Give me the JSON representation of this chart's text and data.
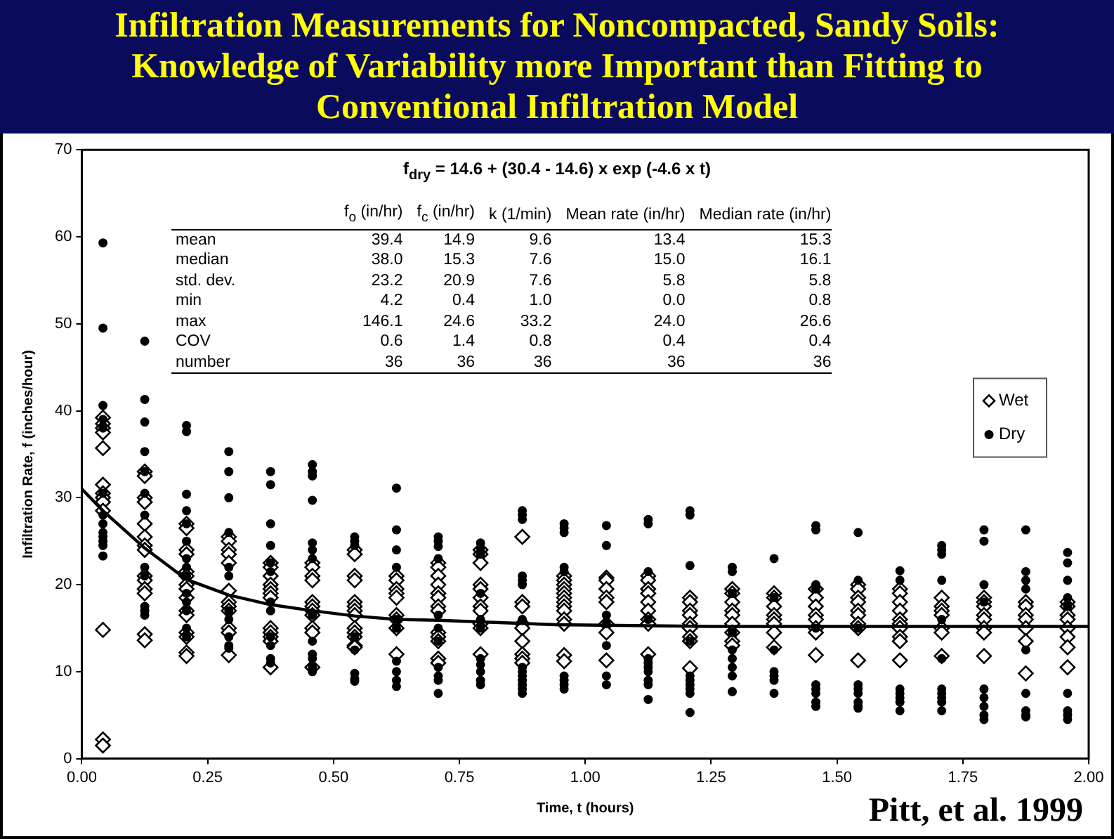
{
  "chart_data": {
    "type": "scatter",
    "title": "Infiltration Measurements for Noncompacted, Sandy Soils: Knowledge of Variability more Important than Fitting to Conventional Infiltration Model",
    "xlabel": "Time, t (hours)",
    "ylabel": "Infiltration Rate, f (inches/hour)",
    "xlim": [
      0,
      2
    ],
    "ylim": [
      0,
      70
    ],
    "xticks": [
      {
        "value": 0,
        "label": "0.00"
      },
      {
        "value": 0.25,
        "label": "0.25"
      },
      {
        "value": 0.5,
        "label": "0.50"
      },
      {
        "value": 0.75,
        "label": "0.75"
      },
      {
        "value": 1,
        "label": "1.00"
      },
      {
        "value": 1.25,
        "label": "1.25"
      },
      {
        "value": 1.5,
        "label": "1.50"
      },
      {
        "value": 1.75,
        "label": "1.75"
      },
      {
        "value": 2,
        "label": "2.00"
      }
    ],
    "yticks": [
      0,
      10,
      20,
      30,
      40,
      50,
      60,
      70
    ],
    "legend": "right",
    "annotations": [
      "f$_{dry}$ = 14.6 + (30.4 - 14.6) x exp (-4.6 x t)",
      "\tf$_{o}$ (in/hr)\tf$_{c}$ (in/hr)\tk (1/min)\tMean rate (in/hr)\tMedian rate (in/hr)",
      "mean\t39.4\t14.9\t9.6\t13.4\t15.3",
      "median\t38.0\t15.3\t7.6\t15.0\t16.1",
      "std. dev.\t23.2\t20.9\t7.6\t5.8\t5.8",
      "min\t4.2\t0.4\t1.0\t0.0\t0.8",
      "max\t146.1\t24.6\t33.2\t24.0\t26.6",
      "COV\t0.6\t1.4\t0.8\t0.4\t0.4",
      "number\t36\t36\t36\t36\t36",
      "Pitt, et al. 1999"
    ],
    "series": [
      {
        "name": "Wet",
        "marker": "diamond",
        "color": "#000000",
        "x": [
          0.042,
          0.042,
          0.042,
          0.042,
          0.042,
          0.042,
          0.042,
          0.042,
          0.042,
          0.042,
          0.042,
          0.042,
          0.042,
          0.125,
          0.125,
          0.125,
          0.125,
          0.125,
          0.125,
          0.125,
          0.125,
          0.125,
          0.125,
          0.125,
          0.125,
          0.125,
          0.125,
          0.208,
          0.208,
          0.208,
          0.208,
          0.208,
          0.208,
          0.208,
          0.208,
          0.208,
          0.208,
          0.208,
          0.208,
          0.208,
          0.208,
          0.208,
          0.292,
          0.292,
          0.292,
          0.292,
          0.292,
          0.292,
          0.292,
          0.292,
          0.292,
          0.292,
          0.292,
          0.292,
          0.375,
          0.375,
          0.375,
          0.375,
          0.375,
          0.375,
          0.375,
          0.375,
          0.375,
          0.375,
          0.375,
          0.375,
          0.458,
          0.458,
          0.458,
          0.458,
          0.458,
          0.458,
          0.458,
          0.458,
          0.458,
          0.458,
          0.458,
          0.542,
          0.542,
          0.542,
          0.542,
          0.542,
          0.542,
          0.542,
          0.542,
          0.542,
          0.542,
          0.542,
          0.542,
          0.542,
          0.625,
          0.625,
          0.625,
          0.625,
          0.625,
          0.625,
          0.625,
          0.625,
          0.625,
          0.708,
          0.708,
          0.708,
          0.708,
          0.708,
          0.708,
          0.708,
          0.708,
          0.708,
          0.708,
          0.708,
          0.708,
          0.708,
          0.792,
          0.792,
          0.792,
          0.792,
          0.792,
          0.792,
          0.792,
          0.792,
          0.792,
          0.792,
          0.792,
          0.875,
          0.875,
          0.875,
          0.875,
          0.875,
          0.875,
          0.875,
          0.875,
          0.875,
          0.958,
          0.958,
          0.958,
          0.958,
          0.958,
          0.958,
          0.958,
          0.958,
          0.958,
          0.958,
          0.958,
          0.958,
          0.958,
          1.042,
          1.042,
          1.042,
          1.042,
          1.042,
          1.042,
          1.042,
          1.042,
          1.125,
          1.125,
          1.125,
          1.125,
          1.125,
          1.125,
          1.125,
          1.125,
          1.125,
          1.208,
          1.208,
          1.208,
          1.208,
          1.208,
          1.208,
          1.208,
          1.208,
          1.208,
          1.292,
          1.292,
          1.292,
          1.292,
          1.292,
          1.292,
          1.292,
          1.292,
          1.292,
          1.375,
          1.375,
          1.375,
          1.375,
          1.375,
          1.375,
          1.375,
          1.375,
          1.458,
          1.458,
          1.458,
          1.458,
          1.458,
          1.458,
          1.458,
          1.458,
          1.542,
          1.542,
          1.542,
          1.542,
          1.542,
          1.542,
          1.542,
          1.542,
          1.542,
          1.625,
          1.625,
          1.625,
          1.625,
          1.625,
          1.625,
          1.625,
          1.625,
          1.625,
          1.625,
          1.708,
          1.708,
          1.708,
          1.708,
          1.708,
          1.708,
          1.708,
          1.792,
          1.792,
          1.792,
          1.792,
          1.792,
          1.792,
          1.792,
          1.792,
          1.875,
          1.875,
          1.875,
          1.875,
          1.875,
          1.875,
          1.875,
          1.958,
          1.958,
          1.958,
          1.958,
          1.958,
          1.958,
          1.958,
          1.958
        ],
        "values": [
          39.2,
          38.5,
          38,
          37.5,
          35.7,
          31.5,
          30.5,
          30,
          29.5,
          28.5,
          14.8,
          2.2,
          1.5,
          33,
          32.5,
          30,
          29.5,
          27,
          25.5,
          24.5,
          24,
          21,
          20.5,
          19.5,
          19,
          14.3,
          13.6,
          27,
          26.5,
          24,
          23.5,
          21.5,
          21,
          20,
          19.5,
          18.5,
          17,
          16.5,
          14.5,
          14,
          12.2,
          11.8,
          25.5,
          25,
          24,
          23.5,
          22.5,
          19.3,
          18,
          17.5,
          17,
          15,
          14.5,
          11.9,
          22.5,
          22,
          21,
          20,
          19.5,
          19,
          18.5,
          15,
          14.5,
          14,
          13.5,
          10.5,
          22.5,
          22,
          21,
          20.5,
          18,
          17.5,
          17,
          16.5,
          15,
          14.5,
          10.5,
          24,
          23.5,
          21,
          20.5,
          18,
          17.5,
          17,
          16.5,
          15,
          14.5,
          14,
          13,
          12.8,
          21,
          20.5,
          19.5,
          19,
          18.5,
          16.5,
          16,
          15,
          12,
          22.5,
          22,
          21,
          20,
          19,
          18.5,
          17.5,
          17,
          14.5,
          14,
          13.5,
          11.5,
          11,
          24,
          23.5,
          22.5,
          20,
          19.5,
          18.5,
          17.5,
          17,
          15.5,
          15,
          12,
          25.5,
          18,
          17.5,
          15.5,
          15,
          13.5,
          12,
          11.5,
          11,
          21,
          20.5,
          20,
          19.5,
          19,
          18.5,
          18,
          17.5,
          17,
          16,
          15.5,
          11.9,
          11.2,
          20.8,
          20.5,
          19.5,
          18.5,
          18,
          15.5,
          14.5,
          11.3,
          21,
          20.5,
          19.5,
          19,
          18,
          17,
          16,
          15.5,
          12,
          18.5,
          18,
          17,
          16.5,
          15.5,
          15,
          14,
          13.5,
          10.4,
          19.5,
          19,
          18,
          17,
          16.5,
          15.5,
          14.5,
          13.5,
          13,
          19,
          18.5,
          17.5,
          16.5,
          16,
          15.5,
          14.5,
          12.8,
          19.5,
          18.5,
          17.5,
          16.5,
          16,
          15,
          14.5,
          11.9,
          20,
          19.5,
          18.5,
          18,
          17,
          16.5,
          15.5,
          15,
          11.3,
          19.5,
          19,
          18,
          17,
          16,
          15.5,
          15,
          14,
          13.5,
          11.3,
          18.5,
          17.5,
          17,
          16.5,
          15,
          14.5,
          11.8,
          18.5,
          18,
          17.5,
          16.5,
          16,
          15,
          14.5,
          11.8,
          18,
          17.5,
          16.5,
          16,
          15,
          13.5,
          9.8,
          18,
          17.5,
          16.5,
          16,
          15,
          14,
          12.8,
          10.5
        ]
      },
      {
        "name": "Dry",
        "marker": "circle",
        "color": "#000000",
        "x": [
          0.042,
          0.042,
          0.042,
          0.042,
          0.042,
          0.042,
          0.042,
          0.042,
          0.042,
          0.042,
          0.042,
          0.042,
          0.042,
          0.125,
          0.125,
          0.125,
          0.125,
          0.125,
          0.125,
          0.125,
          0.125,
          0.125,
          0.125,
          0.125,
          0.125,
          0.208,
          0.208,
          0.208,
          0.208,
          0.208,
          0.208,
          0.208,
          0.208,
          0.208,
          0.208,
          0.208,
          0.208,
          0.208,
          0.208,
          0.292,
          0.292,
          0.292,
          0.292,
          0.292,
          0.292,
          0.292,
          0.292,
          0.292,
          0.292,
          0.292,
          0.375,
          0.375,
          0.375,
          0.375,
          0.375,
          0.375,
          0.375,
          0.375,
          0.375,
          0.375,
          0.375,
          0.375,
          0.458,
          0.458,
          0.458,
          0.458,
          0.458,
          0.458,
          0.458,
          0.458,
          0.458,
          0.458,
          0.458,
          0.458,
          0.458,
          0.542,
          0.542,
          0.542,
          0.542,
          0.542,
          0.542,
          0.542,
          0.542,
          0.625,
          0.625,
          0.625,
          0.625,
          0.625,
          0.625,
          0.625,
          0.625,
          0.625,
          0.625,
          0.708,
          0.708,
          0.708,
          0.708,
          0.708,
          0.708,
          0.708,
          0.708,
          0.708,
          0.708,
          0.708,
          0.792,
          0.792,
          0.792,
          0.792,
          0.792,
          0.792,
          0.792,
          0.792,
          0.792,
          0.792,
          0.792,
          0.875,
          0.875,
          0.875,
          0.875,
          0.875,
          0.875,
          0.875,
          0.875,
          0.875,
          0.875,
          0.875,
          0.875,
          0.875,
          0.875,
          0.958,
          0.958,
          0.958,
          0.958,
          0.958,
          0.958,
          0.958,
          0.958,
          0.958,
          1.042,
          1.042,
          1.042,
          1.042,
          1.042,
          1.042,
          1.042,
          1.125,
          1.125,
          1.125,
          1.125,
          1.125,
          1.125,
          1.125,
          1.125,
          1.125,
          1.125,
          1.125,
          1.208,
          1.208,
          1.208,
          1.208,
          1.208,
          1.208,
          1.208,
          1.208,
          1.208,
          1.208,
          1.292,
          1.292,
          1.292,
          1.292,
          1.292,
          1.292,
          1.292,
          1.292,
          1.292,
          1.375,
          1.375,
          1.375,
          1.375,
          1.375,
          1.375,
          1.375,
          1.458,
          1.458,
          1.458,
          1.458,
          1.458,
          1.458,
          1.458,
          1.458,
          1.458,
          1.458,
          1.542,
          1.542,
          1.542,
          1.542,
          1.542,
          1.542,
          1.542,
          1.542,
          1.542,
          1.625,
          1.625,
          1.625,
          1.625,
          1.625,
          1.625,
          1.625,
          1.708,
          1.708,
          1.708,
          1.708,
          1.708,
          1.708,
          1.708,
          1.708,
          1.708,
          1.708,
          1.708,
          1.792,
          1.792,
          1.792,
          1.792,
          1.792,
          1.792,
          1.792,
          1.792,
          1.792,
          1.875,
          1.875,
          1.875,
          1.875,
          1.875,
          1.875,
          1.875,
          1.875,
          1.875,
          1.958,
          1.958,
          1.958,
          1.958,
          1.958,
          1.958,
          1.958,
          1.958,
          1.958
        ],
        "values": [
          59.3,
          49.5,
          40.6,
          39,
          38,
          30.5,
          28,
          27,
          26,
          25.5,
          25,
          24.5,
          23.3,
          48,
          41.3,
          38.7,
          35.3,
          33,
          30.5,
          28,
          22,
          21,
          17.5,
          17,
          16.5,
          38.3,
          37.6,
          30.4,
          28.5,
          27,
          25,
          23,
          22,
          21,
          19,
          18,
          17,
          15,
          14,
          35.3,
          33,
          30,
          26,
          22,
          21,
          17,
          16,
          14,
          13,
          12.7,
          33,
          31.5,
          27,
          24.5,
          22.5,
          21.5,
          18,
          17,
          14,
          13,
          11.5,
          11,
          33.8,
          33,
          32.5,
          29.7,
          24.8,
          24,
          23,
          16.5,
          13.5,
          12,
          11.5,
          10.5,
          10,
          25.5,
          25,
          24.5,
          14,
          12.5,
          9.8,
          9.2,
          8.9,
          31.1,
          26.3,
          24,
          22,
          16,
          15,
          11.2,
          10,
          9,
          8.3,
          25.5,
          25,
          24.4,
          23,
          16.5,
          15,
          13.5,
          10.5,
          9.5,
          9,
          7.5,
          24.8,
          24.2,
          23.5,
          19,
          16,
          15,
          11.5,
          10.8,
          10,
          9,
          8.5,
          28.5,
          28,
          27.5,
          21,
          20.5,
          20,
          16,
          10.5,
          10,
          9.5,
          9,
          8.5,
          8,
          7.5,
          27,
          26.5,
          26,
          22,
          21.5,
          9.5,
          9,
          8.5,
          8,
          26.8,
          24.5,
          16.5,
          15.5,
          13,
          9.5,
          8.5,
          27.5,
          27,
          21.5,
          16,
          11.5,
          11,
          10.5,
          10,
          9,
          8.5,
          6.8,
          28.5,
          28,
          22.2,
          13.5,
          9.5,
          9,
          8.5,
          8,
          7.5,
          5.3,
          22,
          21.5,
          19,
          14.5,
          12.5,
          11.5,
          10.5,
          9.5,
          7.7,
          23,
          18.5,
          12.5,
          10,
          9.5,
          9,
          7.5,
          26.8,
          26.3,
          20,
          19.5,
          15,
          8.5,
          8,
          7.5,
          6.5,
          6,
          26,
          20.5,
          15,
          8.5,
          8,
          7.5,
          6.5,
          6,
          5.8,
          21.6,
          20.5,
          8,
          7.5,
          7,
          6.5,
          5.5,
          24.5,
          24,
          23.5,
          20.5,
          16,
          11.5,
          8,
          7.5,
          7,
          6.5,
          5.5,
          26.3,
          25,
          20,
          18,
          8,
          7,
          6,
          5,
          4.5,
          26.3,
          21.5,
          20.5,
          19.5,
          12.5,
          7.5,
          5.5,
          5,
          4.8,
          23.7,
          22.5,
          20.5,
          18.5,
          17.5,
          7.5,
          5.5,
          5,
          4.5
        ]
      },
      {
        "type": "line",
        "color": "#000000",
        "marker": "none",
        "x": [
          0,
          0.042,
          0.125,
          0.208,
          0.292,
          0.375,
          0.458,
          0.542,
          0.625,
          0.708,
          0.94,
          1.25,
          1.5,
          2
        ],
        "values": [
          31,
          28.5,
          24.2,
          20.6,
          18.8,
          17.7,
          17,
          16.4,
          16,
          15.9,
          15.4,
          15.2,
          15.2,
          15.2
        ]
      }
    ]
  }
}
